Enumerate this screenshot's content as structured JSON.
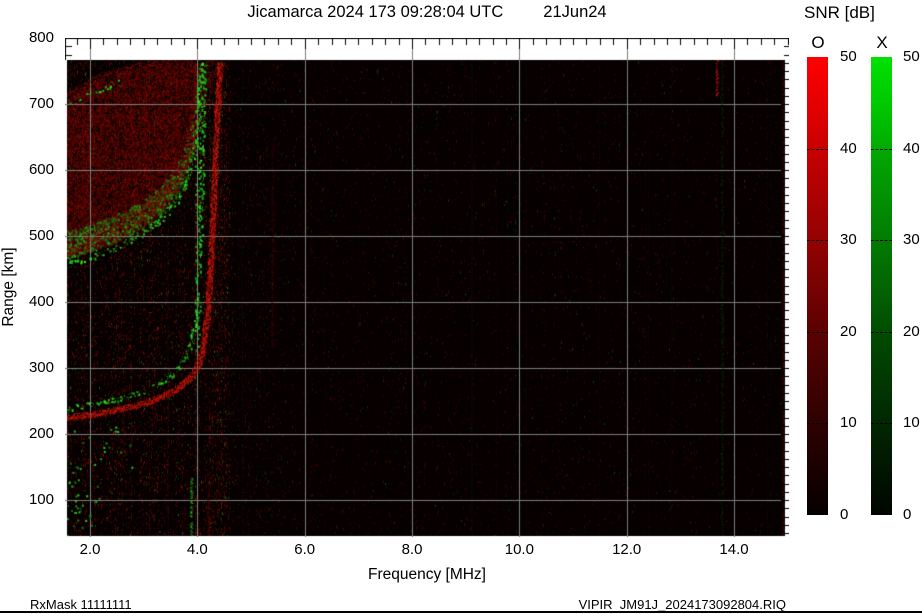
{
  "title": {
    "main": "Jicamarca 2024 173 09:28:04 UTC",
    "date": "21Jun24"
  },
  "footer": {
    "left": "RxMask 11111111",
    "right": "VIPIR  JM91J_2024173092804.RIQ"
  },
  "axes": {
    "x": {
      "label": "Frequency [MHz]",
      "tick_labels": [
        "2.0",
        "4.0",
        "6.0",
        "8.0",
        "10.0",
        "12.0",
        "14.0"
      ],
      "tick_values": [
        2,
        4,
        6,
        8,
        10,
        12,
        14
      ],
      "range_mhz": [
        1.56,
        15.03
      ],
      "minor_step_mhz": 0.25
    },
    "y": {
      "label": "Range [km]",
      "tick_labels": [
        "100",
        "200",
        "300",
        "400",
        "500",
        "600",
        "700",
        "800"
      ],
      "tick_values": [
        100,
        200,
        300,
        400,
        500,
        600,
        700,
        800
      ],
      "range_km": [
        44,
        800
      ],
      "minor_step_km": 12.5
    }
  },
  "colorbar": {
    "title": "SNR [dB]",
    "o_label": "O",
    "x_label": "X",
    "tick_labels": [
      "50",
      "40",
      "30",
      "20",
      "10",
      "0"
    ],
    "tick_values": [
      50,
      40,
      30,
      20,
      10,
      0
    ],
    "dash_values": [
      40,
      30,
      20,
      10
    ],
    "range_db": [
      0,
      50
    ],
    "o_color_top": "#ff0000",
    "x_color_top": "#00dd00"
  },
  "colors": {
    "grid": "#7c7c7c",
    "plot_background": "#060000",
    "axis": "#000000"
  },
  "chart_data": {
    "type": "heatmap",
    "subtype": "ionogram",
    "title": "Jicamarca 2024 173 09:28:04 UTC 21Jun24",
    "xlabel": "Frequency [MHz]",
    "ylabel": "Range [km]",
    "xlim": [
      1.56,
      15.03
    ],
    "ylim": [
      44,
      800
    ],
    "grid": {
      "x_mhz": [
        2,
        4,
        6,
        8,
        10,
        12,
        14
      ],
      "y_km": [
        100,
        200,
        300,
        400,
        500,
        600,
        700
      ]
    },
    "legend": [
      {
        "name": "O mode",
        "color": "red"
      },
      {
        "name": "X mode",
        "color": "green"
      }
    ],
    "snr_scale_db": [
      0,
      50
    ],
    "traces": [
      {
        "id": "hop1-O",
        "mode": "O",
        "color": "red",
        "style": "solid",
        "width": 6,
        "points": [
          [
            1.56,
            226
          ],
          [
            2.0,
            230
          ],
          [
            2.5,
            237
          ],
          [
            3.0,
            247
          ],
          [
            3.3,
            256
          ],
          [
            3.6,
            268
          ],
          [
            3.85,
            284
          ],
          [
            4.0,
            302
          ],
          [
            4.1,
            330
          ],
          [
            4.18,
            378
          ],
          [
            4.24,
            450
          ],
          [
            4.3,
            555
          ],
          [
            4.36,
            670
          ],
          [
            4.42,
            764
          ]
        ]
      },
      {
        "id": "hop1-X",
        "mode": "X",
        "color": "green",
        "style": "speckle",
        "width": 5,
        "points": [
          [
            1.56,
            240
          ],
          [
            2.0,
            245
          ],
          [
            2.5,
            253
          ],
          [
            3.0,
            265
          ],
          [
            3.3,
            277
          ],
          [
            3.55,
            292
          ],
          [
            3.75,
            313
          ],
          [
            3.9,
            342
          ],
          [
            3.99,
            390
          ],
          [
            4.03,
            455
          ],
          [
            4.06,
            555
          ],
          [
            4.09,
            670
          ],
          [
            4.12,
            764
          ]
        ]
      },
      {
        "id": "hop2-O",
        "mode": "O",
        "color": "red",
        "style": "diffuse",
        "width": 14,
        "points": [
          [
            1.56,
            480
          ],
          [
            2.0,
            492
          ],
          [
            2.5,
            510
          ],
          [
            3.0,
            535
          ],
          [
            3.4,
            565
          ],
          [
            3.7,
            600
          ],
          [
            3.9,
            645
          ],
          [
            4.05,
            700
          ],
          [
            4.2,
            750
          ],
          [
            4.32,
            768
          ]
        ]
      },
      {
        "id": "hop2-X",
        "mode": "X",
        "color": "green",
        "style": "speckle",
        "width": 6,
        "points": [
          [
            1.56,
            458
          ],
          [
            2.0,
            468
          ],
          [
            2.5,
            483
          ],
          [
            3.0,
            505
          ],
          [
            3.3,
            524
          ],
          [
            3.6,
            552
          ],
          [
            3.8,
            586
          ],
          [
            3.95,
            635
          ],
          [
            4.03,
            700
          ],
          [
            4.08,
            764
          ]
        ]
      },
      {
        "id": "top-band-O",
        "mode": "O",
        "color": "red",
        "style": "diffuse",
        "width": 7,
        "points": [
          [
            1.56,
            712
          ],
          [
            2.2,
            742
          ],
          [
            2.9,
            758
          ],
          [
            3.9,
            768
          ]
        ]
      },
      {
        "id": "top-band-X",
        "mode": "X",
        "color": "green",
        "style": "speckle-sparse",
        "width": 5,
        "points": [
          [
            1.56,
            698
          ],
          [
            2.0,
            716
          ],
          [
            2.4,
            730
          ],
          [
            2.7,
            740
          ]
        ]
      }
    ],
    "spread_f": {
      "freq_mhz": [
        1.56,
        4.34
      ],
      "lower_trace": "hop2-X",
      "upper_trace": "top-band-O",
      "color": "dark-red-speckle"
    },
    "x_asymptote_column": {
      "freq_mhz": [
        3.95,
        4.05
      ],
      "range_km": [
        310,
        758
      ]
    },
    "rfi_streaks": [
      {
        "freq": 3.87,
        "range": [
          45,
          135
        ],
        "color": "green",
        "faint": false
      },
      {
        "freq": 4.18,
        "range": [
          45,
          140
        ],
        "color": "red",
        "faint": true
      },
      {
        "freq": 5.38,
        "range": [
          330,
          640
        ],
        "color": "red",
        "faint": true
      },
      {
        "freq": 13.66,
        "range": [
          713,
          768
        ],
        "color": "red",
        "faint": false
      },
      {
        "freq": 13.76,
        "range": [
          45,
          768
        ],
        "color": "green",
        "faint": true
      },
      {
        "freq": 14.9,
        "range": [
          45,
          768
        ],
        "color": "red",
        "faint": true
      }
    ],
    "scatter": [
      {
        "freq": [
          1.56,
          1.85
        ],
        "range": [
          45,
          160
        ],
        "count": 26,
        "color": "green"
      },
      {
        "freq": [
          1.9,
          2.2
        ],
        "range": [
          55,
          130
        ],
        "count": 8,
        "color": "green"
      },
      {
        "freq": [
          1.56,
          2.8
        ],
        "range": [
          150,
          215
        ],
        "count": 16,
        "color": "green"
      }
    ],
    "noise": {
      "background": "#060000",
      "left_density": 0.085,
      "right_density": 0.028,
      "transition_freq_mhz": 4.6,
      "elevated_band_mhz": [
        4.2,
        5.6
      ]
    }
  }
}
